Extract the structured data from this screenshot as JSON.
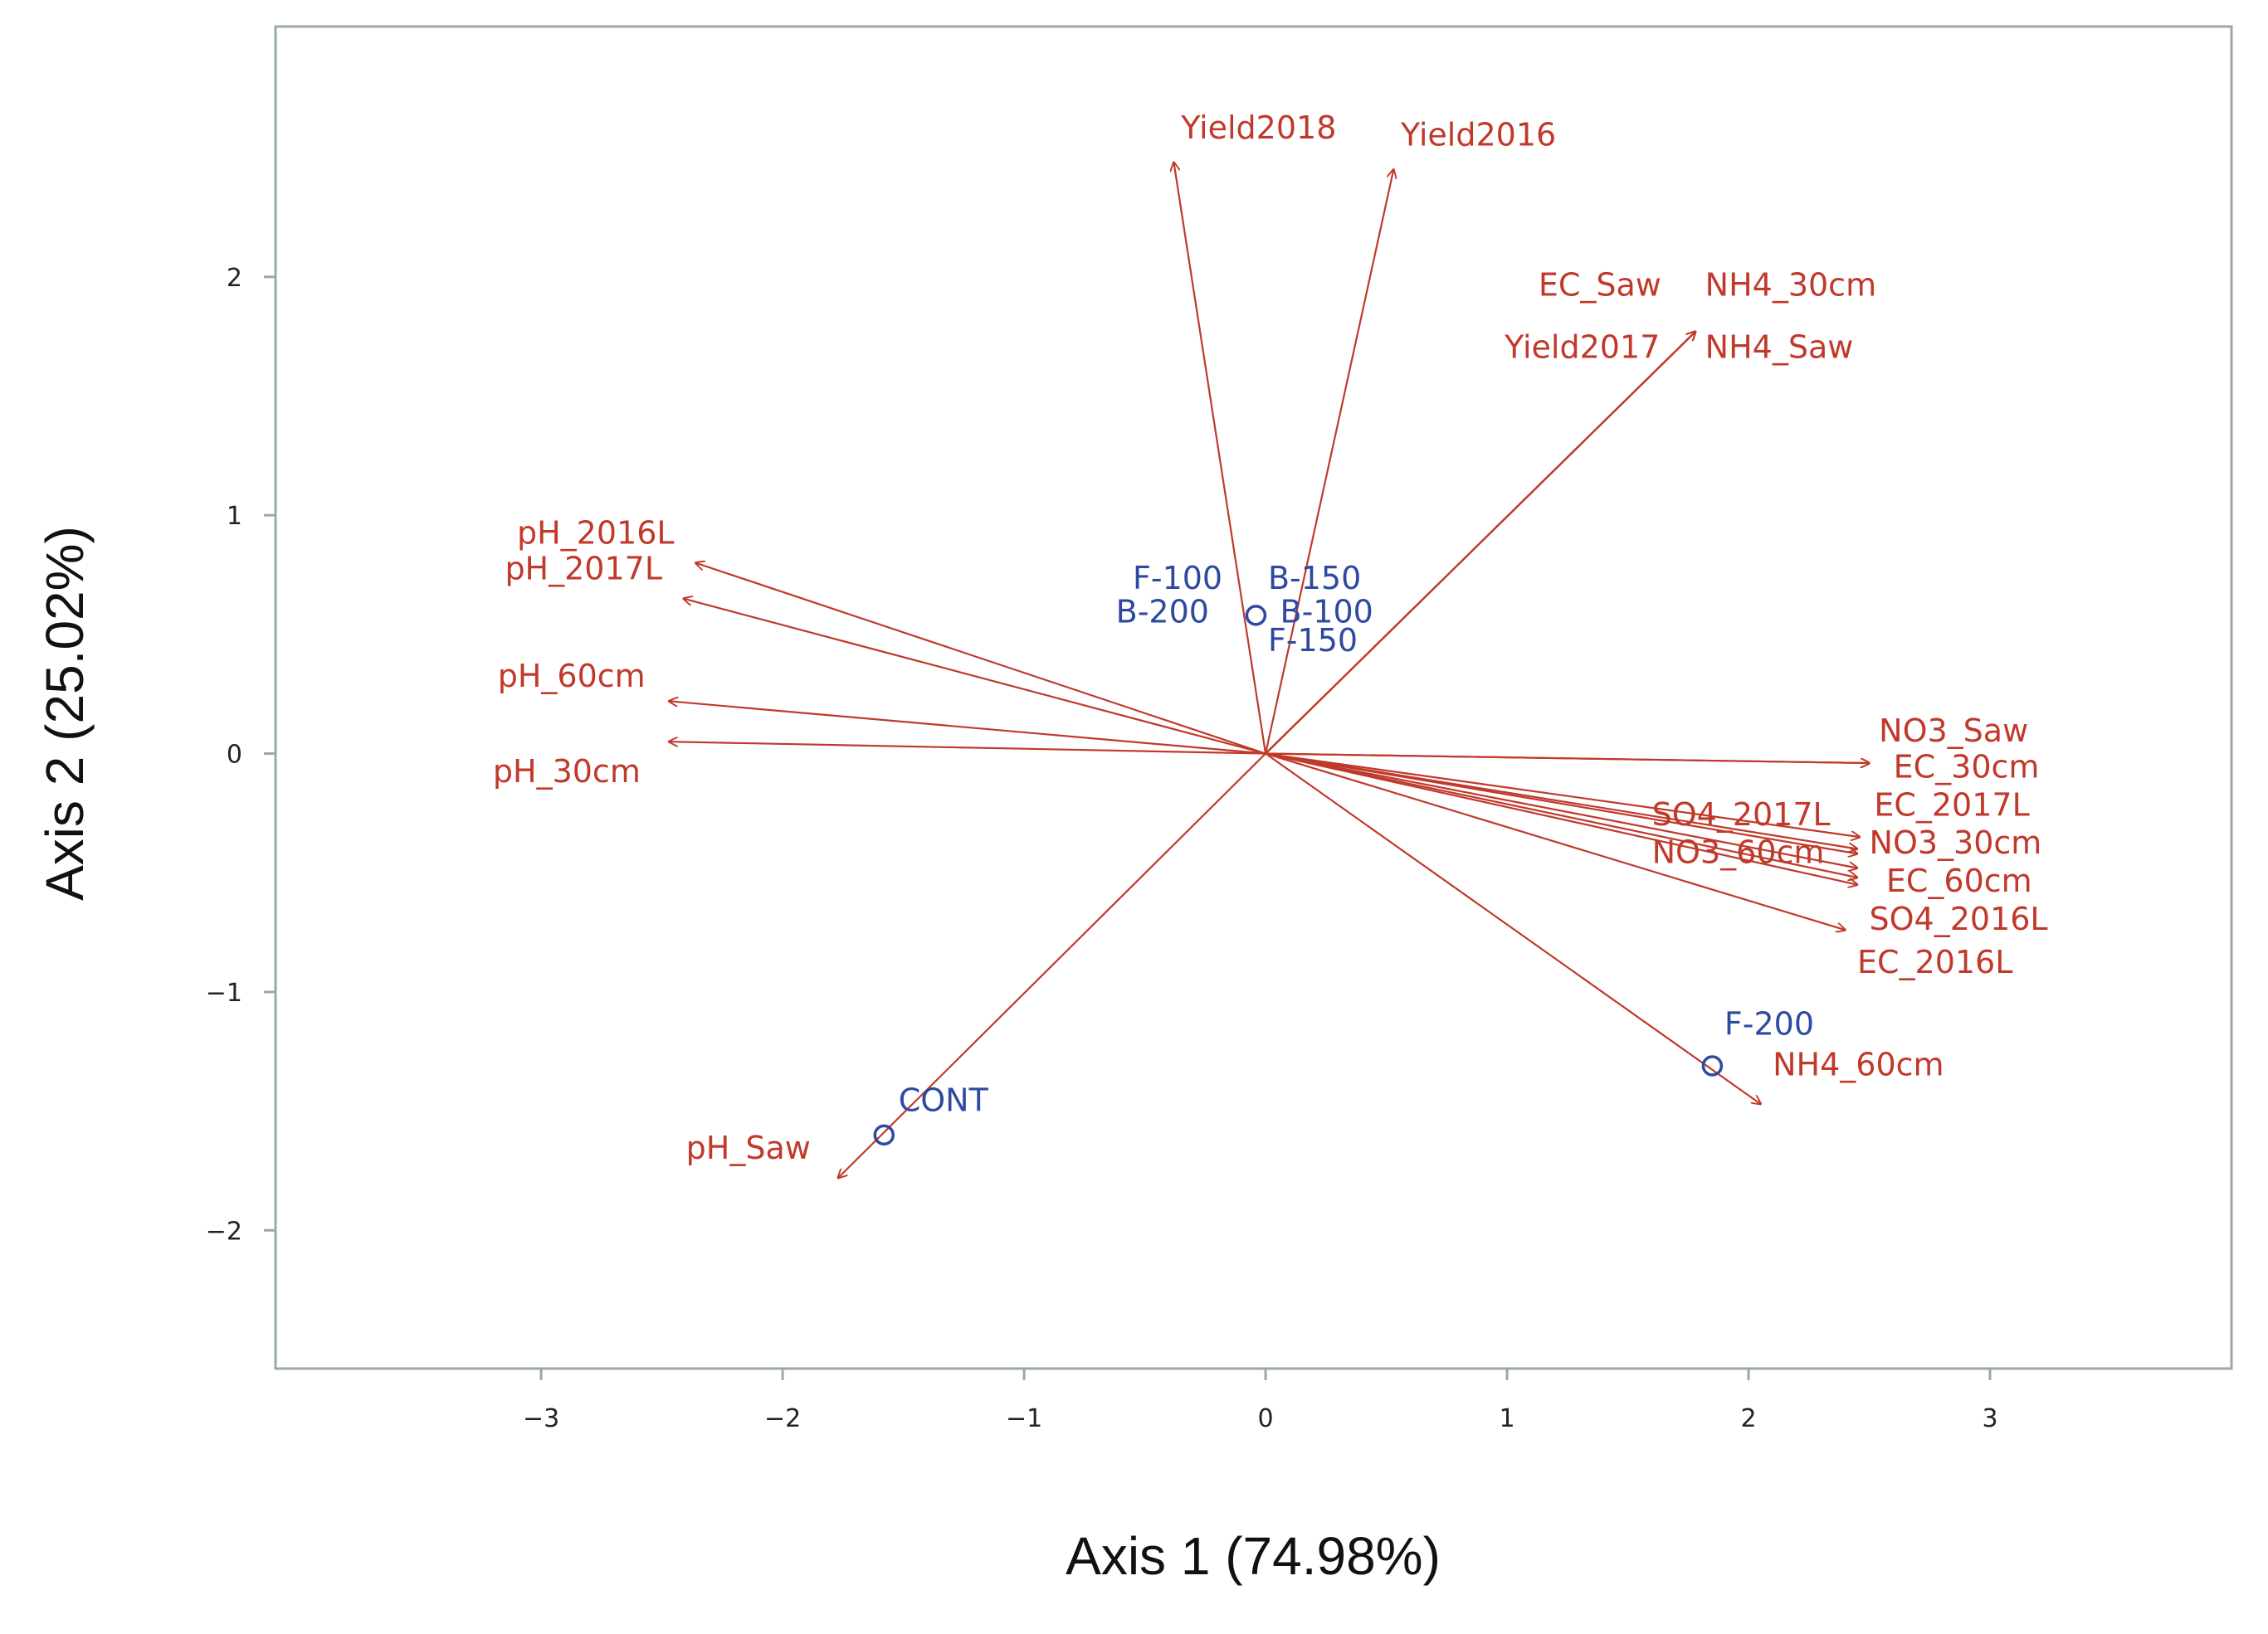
{
  "chart_data": {
    "type": "scatter",
    "subtype": "biplot",
    "title": "",
    "xlabel": "Axis 1 (74.98%)",
    "ylabel": "Axis 2 (25.02%)",
    "xlim": [
      -4.1,
      4.0
    ],
    "ylim": [
      -2.58,
      3.05
    ],
    "xticks": [
      -3,
      -2,
      -1,
      0,
      1,
      2,
      3
    ],
    "yticks": [
      -2,
      -1,
      0,
      1,
      2
    ],
    "colors": {
      "vectors": "#c0392b",
      "observations": "#2e4aa0",
      "frame": "#9aa8a8"
    },
    "vectors": [
      {
        "name": "Yield2018",
        "x": -0.38,
        "y": 2.48,
        "lx": -0.35,
        "ly": 2.58
      },
      {
        "name": "Yield2016",
        "x": 0.53,
        "y": 2.45,
        "lx": 0.56,
        "ly": 2.55
      },
      {
        "name": "EC_Saw",
        "x": 1.78,
        "y": 1.77,
        "lx": 1.13,
        "ly": 1.92
      },
      {
        "name": "NH4_30cm",
        "x": 1.78,
        "y": 1.77,
        "lx": 1.82,
        "ly": 1.92
      },
      {
        "name": "Yield2017",
        "x": 1.78,
        "y": 1.77,
        "lx": 0.99,
        "ly": 1.66
      },
      {
        "name": "NH4_Saw",
        "x": 1.78,
        "y": 1.77,
        "lx": 1.82,
        "ly": 1.66
      },
      {
        "name": "pH_2016L",
        "x": -2.36,
        "y": 0.8,
        "lx": -3.1,
        "ly": 0.88
      },
      {
        "name": "pH_2017L",
        "x": -2.41,
        "y": 0.65,
        "lx": -3.15,
        "ly": 0.73
      },
      {
        "name": "pH_60cm",
        "x": -2.47,
        "y": 0.22,
        "lx": -3.18,
        "ly": 0.28
      },
      {
        "name": "pH_30cm",
        "x": -2.47,
        "y": 0.05,
        "lx": -3.2,
        "ly": -0.12
      },
      {
        "name": "pH_Saw",
        "x": -1.77,
        "y": -1.78,
        "lx": -2.4,
        "ly": -1.7
      },
      {
        "name": "NO3_Saw",
        "x": 2.5,
        "y": -0.04,
        "lx": 2.54,
        "ly": 0.05
      },
      {
        "name": "EC_30cm",
        "x": 2.5,
        "y": -0.04,
        "lx": 2.6,
        "ly": -0.1
      },
      {
        "name": "EC_2017L",
        "x": 2.46,
        "y": -0.35,
        "lx": 2.52,
        "ly": -0.26
      },
      {
        "name": "SO4_2017L",
        "x": 2.45,
        "y": -0.4,
        "lx": 1.6,
        "ly": -0.3
      },
      {
        "name": "NO3_30cm",
        "x": 2.45,
        "y": -0.42,
        "lx": 2.5,
        "ly": -0.42
      },
      {
        "name": "NO3_60cm",
        "x": 2.45,
        "y": -0.48,
        "lx": 1.6,
        "ly": -0.46
      },
      {
        "name": "EC_60cm",
        "x": 2.45,
        "y": -0.52,
        "lx": 2.57,
        "ly": -0.58
      },
      {
        "name": "SO4_2016L",
        "x": 2.45,
        "y": -0.55,
        "lx": 2.5,
        "ly": -0.74
      },
      {
        "name": "EC_2016L",
        "x": 2.4,
        "y": -0.74,
        "lx": 2.45,
        "ly": -0.92
      },
      {
        "name": "NH4_60cm",
        "x": 2.05,
        "y": -1.47,
        "lx": 2.1,
        "ly": -1.35
      }
    ],
    "observations": [
      {
        "name": "F-100",
        "x": -0.04,
        "y": 0.58,
        "lx": -0.55,
        "ly": 0.69
      },
      {
        "name": "B-150",
        "x": -0.04,
        "y": 0.58,
        "lx": 0.01,
        "ly": 0.69
      },
      {
        "name": "B-200",
        "x": -0.04,
        "y": 0.58,
        "lx": -0.62,
        "ly": 0.55
      },
      {
        "name": "B-100",
        "x": -0.04,
        "y": 0.58,
        "lx": 0.06,
        "ly": 0.55
      },
      {
        "name": "F-150",
        "x": -0.04,
        "y": 0.58,
        "lx": 0.01,
        "ly": 0.43
      },
      {
        "name": "F-200",
        "x": 1.85,
        "y": -1.31,
        "lx": 1.9,
        "ly": -1.18
      },
      {
        "name": "CONT",
        "x": -1.58,
        "y": -1.6,
        "lx": -1.52,
        "ly": -1.5
      }
    ]
  }
}
